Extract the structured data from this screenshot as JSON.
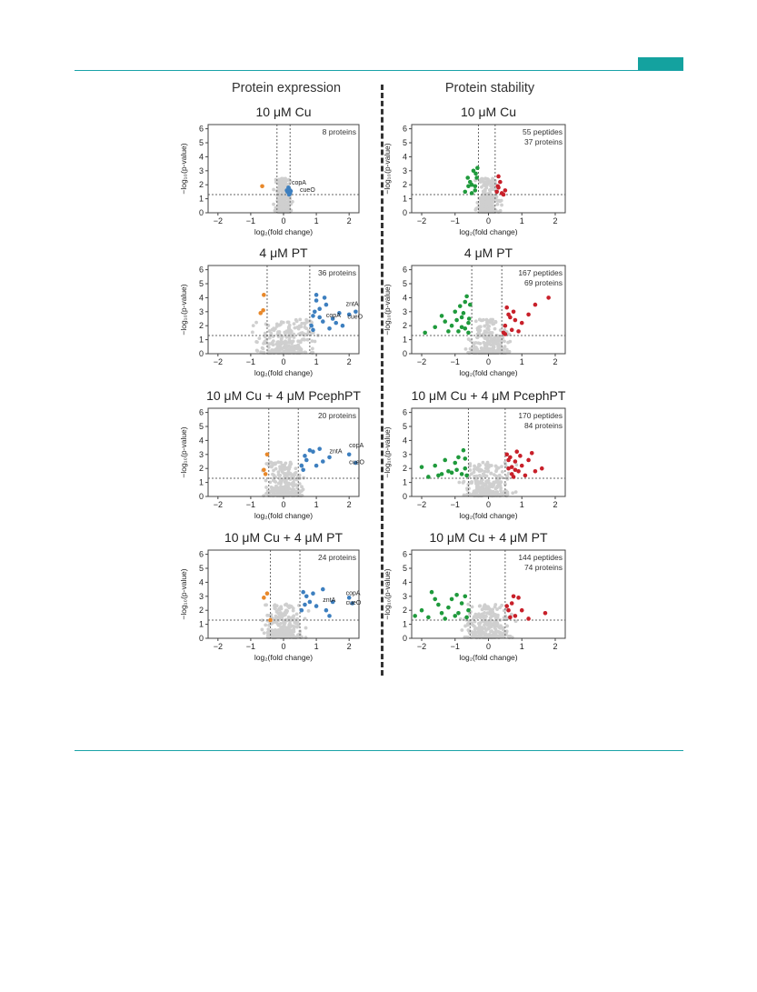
{
  "header": {
    "col_left": "Protein expression",
    "col_right": "Protein stability"
  },
  "colors": {
    "up": "#3d7fbf",
    "down": "#e8882a",
    "stab_up": "#c8202a",
    "stab_down": "#1f9a3c",
    "ns": "#cfcfcf",
    "teal": "#14a29f"
  },
  "axes": {
    "ylabel": "−log₁₀(p‐value)",
    "xlabel": "log₂(fold change)",
    "xticks": [
      "−2",
      "−1",
      "0",
      "1",
      "2"
    ],
    "yticks": [
      "0",
      "1",
      "2",
      "3",
      "4",
      "5",
      "6"
    ]
  },
  "chart_data": [
    {
      "type": "scatter",
      "title": "10 μM Cu",
      "count_lines": [
        "8 proteins"
      ],
      "xlim": [
        -2.3,
        2.3
      ],
      "ylim": [
        0,
        6.3
      ],
      "vlines": [
        -0.2,
        0.2
      ],
      "hline": 1.3,
      "up": [
        [
          0.1,
          1.6
        ],
        [
          0.15,
          1.8
        ],
        [
          0.2,
          1.4
        ],
        [
          0.12,
          1.5
        ],
        [
          0.18,
          1.65
        ],
        [
          0.22,
          1.55
        ],
        [
          0.17,
          1.3
        ]
      ],
      "down": [
        [
          -0.65,
          1.9
        ]
      ],
      "labels": [
        {
          "text": "copA",
          "x": 0.25,
          "y": 2.0
        },
        {
          "text": "cueO",
          "x": 0.5,
          "y": 1.5
        }
      ]
    },
    {
      "type": "scatter",
      "title": "10 μM Cu",
      "count_lines": [
        "55 peptides",
        "37 proteins"
      ],
      "xlim": [
        -2.3,
        2.3
      ],
      "ylim": [
        0,
        6.3
      ],
      "vlines": [
        -0.3,
        0.2
      ],
      "hline": 1.3,
      "up": [
        [
          0.3,
          1.8
        ],
        [
          0.35,
          2.2
        ],
        [
          0.25,
          1.5
        ],
        [
          0.4,
          1.4
        ],
        [
          0.5,
          1.6
        ],
        [
          0.3,
          2.6
        ],
        [
          0.28,
          1.9
        ],
        [
          0.45,
          1.3
        ]
      ],
      "down": [
        [
          -0.4,
          1.6
        ],
        [
          -0.5,
          2.0
        ],
        [
          -0.35,
          2.5
        ],
        [
          -0.6,
          1.9
        ],
        [
          -0.45,
          3.0
        ],
        [
          -0.55,
          2.2
        ],
        [
          -0.7,
          1.5
        ],
        [
          -0.4,
          1.9
        ],
        [
          -0.38,
          2.8
        ],
        [
          -0.5,
          1.4
        ],
        [
          -0.33,
          3.2
        ],
        [
          -0.62,
          2.5
        ]
      ],
      "labels": []
    },
    {
      "type": "scatter",
      "title": "4 μM PT",
      "count_lines": [
        "36 proteins"
      ],
      "xlim": [
        -2.3,
        2.3
      ],
      "ylim": [
        0,
        6.3
      ],
      "vlines": [
        -0.5,
        0.8
      ],
      "hline": 1.3,
      "up": [
        [
          1.0,
          3.8
        ],
        [
          1.1,
          3.2
        ],
        [
          0.9,
          2.7
        ],
        [
          1.2,
          2.3
        ],
        [
          1.3,
          3.5
        ],
        [
          1.0,
          4.2
        ],
        [
          0.85,
          2.0
        ],
        [
          1.5,
          2.5
        ],
        [
          1.7,
          2.9
        ],
        [
          1.8,
          2.0
        ],
        [
          2.0,
          2.8
        ],
        [
          2.2,
          3.0
        ],
        [
          1.4,
          1.8
        ],
        [
          1.1,
          2.6
        ],
        [
          0.95,
          3.0
        ],
        [
          1.6,
          2.2
        ],
        [
          0.9,
          1.7
        ],
        [
          1.25,
          4.0
        ]
      ],
      "down": [
        [
          -0.6,
          4.2
        ],
        [
          -0.62,
          3.1
        ],
        [
          -0.7,
          2.9
        ]
      ],
      "labels": [
        {
          "text": "zntA",
          "x": 1.9,
          "y": 3.4
        },
        {
          "text": "copA",
          "x": 1.3,
          "y": 2.6
        },
        {
          "text": "cueO",
          "x": 1.95,
          "y": 2.5
        }
      ]
    },
    {
      "type": "scatter",
      "title": "4 μM PT",
      "count_lines": [
        "167 peptides",
        "69 proteins"
      ],
      "xlim": [
        -2.3,
        2.3
      ],
      "ylim": [
        0,
        6.3
      ],
      "vlines": [
        -0.5,
        0.4
      ],
      "hline": 1.3,
      "up": [
        [
          0.5,
          2.0
        ],
        [
          0.6,
          2.8
        ],
        [
          0.7,
          1.7
        ],
        [
          0.8,
          2.4
        ],
        [
          0.55,
          3.3
        ],
        [
          0.9,
          1.6
        ],
        [
          1.0,
          2.2
        ],
        [
          0.45,
          1.5
        ],
        [
          0.65,
          2.6
        ],
        [
          1.2,
          2.8
        ],
        [
          1.4,
          3.5
        ],
        [
          1.8,
          4.0
        ],
        [
          0.75,
          3.0
        ],
        [
          0.5,
          1.4
        ]
      ],
      "down": [
        [
          -0.6,
          2.2
        ],
        [
          -0.8,
          2.6
        ],
        [
          -1.0,
          3.0
        ],
        [
          -0.7,
          1.8
        ],
        [
          -0.9,
          1.6
        ],
        [
          -1.3,
          2.3
        ],
        [
          -1.6,
          1.9
        ],
        [
          -1.9,
          1.5
        ],
        [
          -0.55,
          3.5
        ],
        [
          -0.65,
          4.1
        ],
        [
          -0.75,
          2.9
        ],
        [
          -0.85,
          3.4
        ],
        [
          -1.1,
          2.0
        ],
        [
          -0.6,
          1.5
        ],
        [
          -1.2,
          1.6
        ],
        [
          -0.7,
          3.7
        ],
        [
          -0.95,
          2.4
        ],
        [
          -1.4,
          2.7
        ],
        [
          -0.58,
          2.5
        ],
        [
          -0.8,
          1.9
        ]
      ],
      "labels": []
    },
    {
      "type": "scatter",
      "title": "10 μM Cu + 4 μM PcephPT",
      "count_lines": [
        "20 proteins"
      ],
      "xlim": [
        -2.3,
        2.3
      ],
      "ylim": [
        0,
        6.3
      ],
      "vlines": [
        -0.45,
        0.45
      ],
      "hline": 1.3,
      "up": [
        [
          0.8,
          3.3
        ],
        [
          0.9,
          3.2
        ],
        [
          0.7,
          2.6
        ],
        [
          1.2,
          2.5
        ],
        [
          1.0,
          2.2
        ],
        [
          0.6,
          1.9
        ],
        [
          1.4,
          2.8
        ],
        [
          1.1,
          3.4
        ],
        [
          2.0,
          3.0
        ],
        [
          2.2,
          2.4
        ],
        [
          0.65,
          2.9
        ],
        [
          0.55,
          2.2
        ]
      ],
      "down": [
        [
          -0.5,
          3.0
        ],
        [
          -0.6,
          1.9
        ],
        [
          -0.55,
          1.6
        ]
      ],
      "labels": [
        {
          "text": "zntA",
          "x": 1.4,
          "y": 3.1
        },
        {
          "text": "copA",
          "x": 2.0,
          "y": 3.5
        },
        {
          "text": "cueO",
          "x": 2.0,
          "y": 2.3
        }
      ]
    },
    {
      "type": "scatter",
      "title": "10 μM Cu + 4 μM PcephPT",
      "count_lines": [
        "170 peptides",
        "84 proteins"
      ],
      "xlim": [
        -2.3,
        2.3
      ],
      "ylim": [
        0,
        6.3
      ],
      "vlines": [
        -0.6,
        0.5
      ],
      "hline": 1.3,
      "up": [
        [
          0.6,
          2.0
        ],
        [
          0.7,
          1.6
        ],
        [
          0.8,
          2.5
        ],
        [
          0.9,
          1.8
        ],
        [
          1.0,
          2.2
        ],
        [
          0.55,
          3.0
        ],
        [
          0.65,
          2.8
        ],
        [
          1.2,
          2.6
        ],
        [
          1.4,
          1.8
        ],
        [
          1.6,
          2.0
        ],
        [
          0.75,
          1.4
        ],
        [
          0.85,
          3.2
        ],
        [
          1.1,
          1.5
        ],
        [
          0.6,
          2.6
        ],
        [
          0.95,
          2.9
        ],
        [
          0.7,
          2.1
        ],
        [
          1.3,
          3.1
        ],
        [
          0.8,
          1.9
        ]
      ],
      "down": [
        [
          -0.7,
          2.0
        ],
        [
          -0.8,
          1.6
        ],
        [
          -1.0,
          2.4
        ],
        [
          -1.2,
          1.8
        ],
        [
          -1.5,
          1.5
        ],
        [
          -1.8,
          1.4
        ],
        [
          -2.0,
          2.1
        ],
        [
          -0.9,
          2.8
        ],
        [
          -1.3,
          2.6
        ],
        [
          -0.65,
          1.5
        ],
        [
          -0.75,
          3.3
        ],
        [
          -1.1,
          1.7
        ],
        [
          -1.6,
          2.2
        ],
        [
          -0.95,
          1.9
        ],
        [
          -0.7,
          2.7
        ],
        [
          -1.4,
          1.6
        ]
      ],
      "labels": []
    },
    {
      "type": "scatter",
      "title": "10 μM Cu + 4 μM PT",
      "count_lines": [
        "24 proteins"
      ],
      "xlim": [
        -2.3,
        2.3
      ],
      "ylim": [
        0,
        6.3
      ],
      "vlines": [
        -0.4,
        0.5
      ],
      "hline": 1.3,
      "up": [
        [
          0.6,
          3.3
        ],
        [
          0.7,
          3.0
        ],
        [
          0.8,
          2.6
        ],
        [
          1.0,
          2.3
        ],
        [
          1.3,
          2.0
        ],
        [
          0.55,
          2.0
        ],
        [
          0.9,
          3.2
        ],
        [
          1.2,
          3.5
        ],
        [
          1.5,
          2.6
        ],
        [
          2.0,
          2.9
        ],
        [
          2.1,
          2.5
        ],
        [
          0.65,
          2.4
        ],
        [
          1.4,
          1.6
        ]
      ],
      "down": [
        [
          -0.5,
          3.2
        ],
        [
          -0.6,
          2.9
        ],
        [
          -0.4,
          1.3
        ]
      ],
      "labels": [
        {
          "text": "zntA",
          "x": 1.2,
          "y": 2.6
        },
        {
          "text": "copA",
          "x": 1.9,
          "y": 3.1
        },
        {
          "text": "cueO",
          "x": 1.9,
          "y": 2.4
        }
      ]
    },
    {
      "type": "scatter",
      "title": "10 μM Cu + 4 μM PT",
      "count_lines": [
        "144 peptides",
        "74 proteins"
      ],
      "xlim": [
        -2.3,
        2.3
      ],
      "ylim": [
        0,
        6.3
      ],
      "vlines": [
        -0.55,
        0.5
      ],
      "hline": 1.3,
      "up": [
        [
          0.6,
          2.0
        ],
        [
          0.7,
          2.5
        ],
        [
          0.8,
          1.6
        ],
        [
          0.9,
          2.9
        ],
        [
          0.55,
          2.3
        ],
        [
          0.65,
          1.5
        ],
        [
          1.0,
          2.0
        ],
        [
          1.2,
          1.4
        ],
        [
          1.7,
          1.8
        ],
        [
          0.75,
          3.0
        ]
      ],
      "down": [
        [
          -0.6,
          2.0
        ],
        [
          -0.8,
          2.5
        ],
        [
          -1.0,
          1.6
        ],
        [
          -1.2,
          2.2
        ],
        [
          -1.4,
          1.8
        ],
        [
          -1.6,
          2.8
        ],
        [
          -1.8,
          1.5
        ],
        [
          -2.0,
          2.0
        ],
        [
          -0.7,
          3.0
        ],
        [
          -0.9,
          1.8
        ],
        [
          -1.1,
          2.8
        ],
        [
          -1.3,
          1.4
        ],
        [
          -1.5,
          2.4
        ],
        [
          -1.7,
          3.3
        ],
        [
          -0.65,
          1.5
        ],
        [
          -2.2,
          1.6
        ],
        [
          -0.95,
          3.1
        ]
      ],
      "labels": []
    }
  ]
}
